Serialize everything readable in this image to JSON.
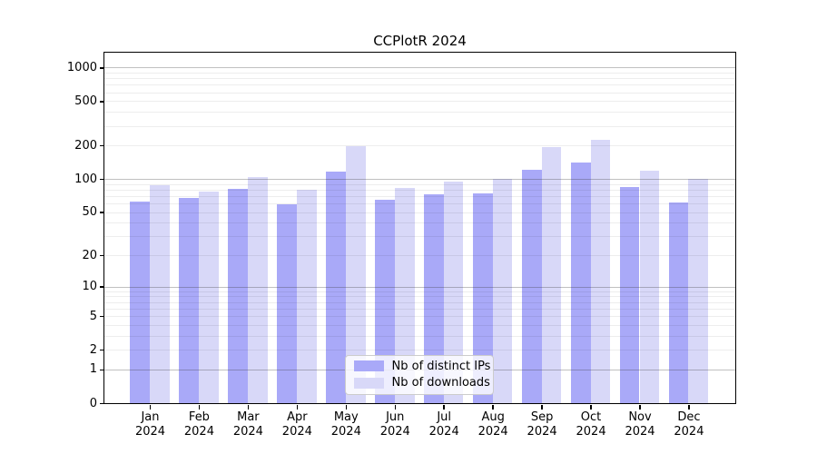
{
  "chart_data": {
    "type": "bar",
    "title": "CCPlotR 2024",
    "categories": [
      "Jan",
      "Feb",
      "Mar",
      "Apr",
      "May",
      "Jun",
      "Jul",
      "Aug",
      "Sep",
      "Oct",
      "Nov",
      "Dec"
    ],
    "category_year": "2024",
    "series": [
      {
        "name": "Nb of distinct IPs",
        "color": "#a9a9f8",
        "values": [
          62,
          67,
          81,
          59,
          117,
          65,
          73,
          74,
          121,
          140,
          84,
          61
        ]
      },
      {
        "name": "Nb of downloads",
        "color": "#d8d8f8",
        "values": [
          88,
          77,
          104,
          80,
          196,
          83,
          95,
          101,
          193,
          226,
          118,
          101
        ]
      }
    ],
    "yscale": "log1p",
    "yticks": [
      0,
      1,
      2,
      5,
      10,
      20,
      50,
      100,
      200,
      500,
      1000
    ],
    "ylim": [
      0,
      1370
    ],
    "grid": "on",
    "grid_major_at": [
      1,
      10,
      100,
      1000
    ],
    "legend_position": "lower center",
    "colors": {
      "axis": "#000000",
      "grid_major": "#b5b5b5",
      "grid_minor": "#ededed",
      "background": "#ffffff"
    }
  }
}
